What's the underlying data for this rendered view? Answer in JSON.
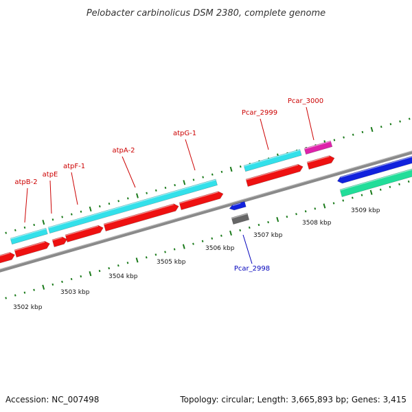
{
  "title": "Pelobacter carbinolicus DSM 2380, complete genome",
  "footer": {
    "accession": "Accession: NC_007498",
    "summary": "Topology: circular; Length: 3,665,893 bp; Genes: 3,415"
  },
  "colors": {
    "label_red": "#cc0000",
    "label_blue": "#0000bb",
    "cyan": "#33e0ea",
    "red": "#ee1111",
    "magenta": "#dd22aa",
    "blue": "#1122dd",
    "green": "#22dd99",
    "gray": "#666666",
    "backbone": "#8a8a8a",
    "tick": "#1a7a1a"
  },
  "axis": {
    "unit": "kbp",
    "ticks": [
      "3502 kbp",
      "3503 kbp",
      "3504 kbp",
      "3505 kbp",
      "3506 kbp",
      "3507 kbp",
      "3508 kbp",
      "3509 kbp"
    ]
  },
  "gene_labels": [
    {
      "text": "atpB-2",
      "color": "red"
    },
    {
      "text": "atpE",
      "color": "red"
    },
    {
      "text": "atpF-1",
      "color": "red"
    },
    {
      "text": "atpA-2",
      "color": "red"
    },
    {
      "text": "atpG-1",
      "color": "red"
    },
    {
      "text": "Pcar_2999",
      "color": "red"
    },
    {
      "text": "Pcar_3000",
      "color": "red"
    },
    {
      "text": "Pcar_2998",
      "color": "blue"
    }
  ]
}
